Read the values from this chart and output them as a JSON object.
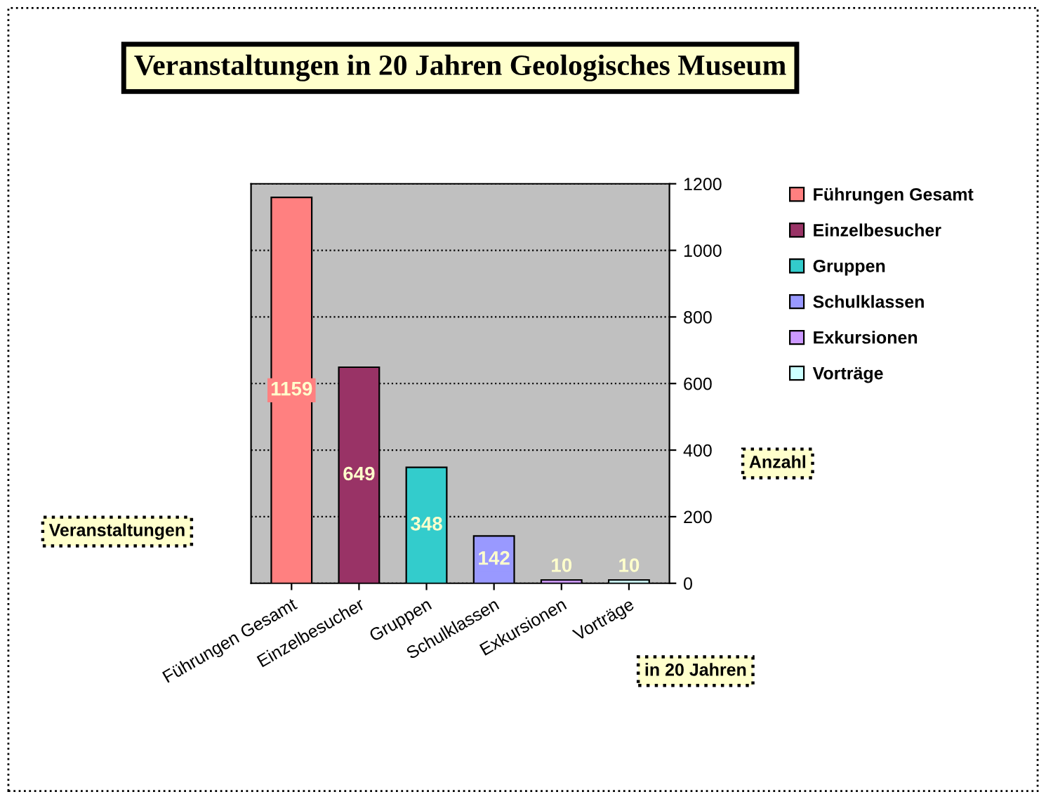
{
  "chart_data": {
    "type": "bar",
    "title": "Veranstaltungen in 20 Jahren Geologisches Museum",
    "xlabel": "Veranstaltungen",
    "ylabel": "Anzahl",
    "annotations": [
      "in 20 Jahren"
    ],
    "categories": [
      "Führungen Gesamt",
      "Einzelbesucher",
      "Gruppen",
      "Schulklassen",
      "Exkursionen",
      "Vorträge"
    ],
    "series": [
      {
        "name": "Führungen Gesamt",
        "color": "#ff8080",
        "values": [
          1159,
          null,
          null,
          null,
          null,
          null
        ]
      },
      {
        "name": "Einzelbesucher",
        "color": "#993366",
        "values": [
          null,
          649,
          null,
          null,
          null,
          null
        ]
      },
      {
        "name": "Gruppen",
        "color": "#33cccc",
        "values": [
          null,
          null,
          348,
          null,
          null,
          null
        ]
      },
      {
        "name": "Schulklassen",
        "color": "#9999ff",
        "values": [
          null,
          null,
          null,
          142,
          null,
          null
        ]
      },
      {
        "name": "Exkursionen",
        "color": "#cc99ff",
        "values": [
          null,
          null,
          null,
          null,
          10,
          null
        ]
      },
      {
        "name": "Vorträge",
        "color": "#ccffff",
        "values": [
          null,
          null,
          null,
          null,
          null,
          10
        ]
      }
    ],
    "ylim": [
      0,
      1200
    ],
    "yticks": [
      0,
      200,
      400,
      600,
      800,
      1000,
      1200
    ],
    "grid": "y",
    "legend": "right",
    "data_labels": true
  }
}
